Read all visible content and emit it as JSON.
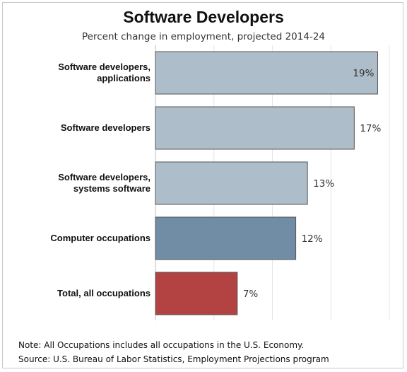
{
  "chart_data": {
    "type": "bar",
    "orientation": "horizontal",
    "title": "Software Developers",
    "subtitle": "Percent change in employment, projected 2014-24",
    "categories": [
      [
        "Software developers,",
        "applications"
      ],
      [
        "Software developers"
      ],
      [
        "Software developers,",
        "systems software"
      ],
      [
        "Computer occupations"
      ],
      [
        "Total, all occupations"
      ]
    ],
    "values": [
      19,
      17,
      13,
      12,
      7
    ],
    "value_labels": [
      "19%",
      "17%",
      "13%",
      "12%",
      "7%"
    ],
    "bar_colors": [
      "#aebdca",
      "#aebdca",
      "#aebdca",
      "#708da5",
      "#b34343"
    ],
    "xlim": [
      0,
      20
    ],
    "grid": true
  },
  "notes": {
    "note": "Note: All Occupations includes all occupations in the U.S. Economy.",
    "source": "Source: U.S. Bureau of Labor Statistics, Employment Projections program"
  },
  "colors": {
    "grid": "#e6e6e6",
    "bar_stroke": "#555555"
  }
}
